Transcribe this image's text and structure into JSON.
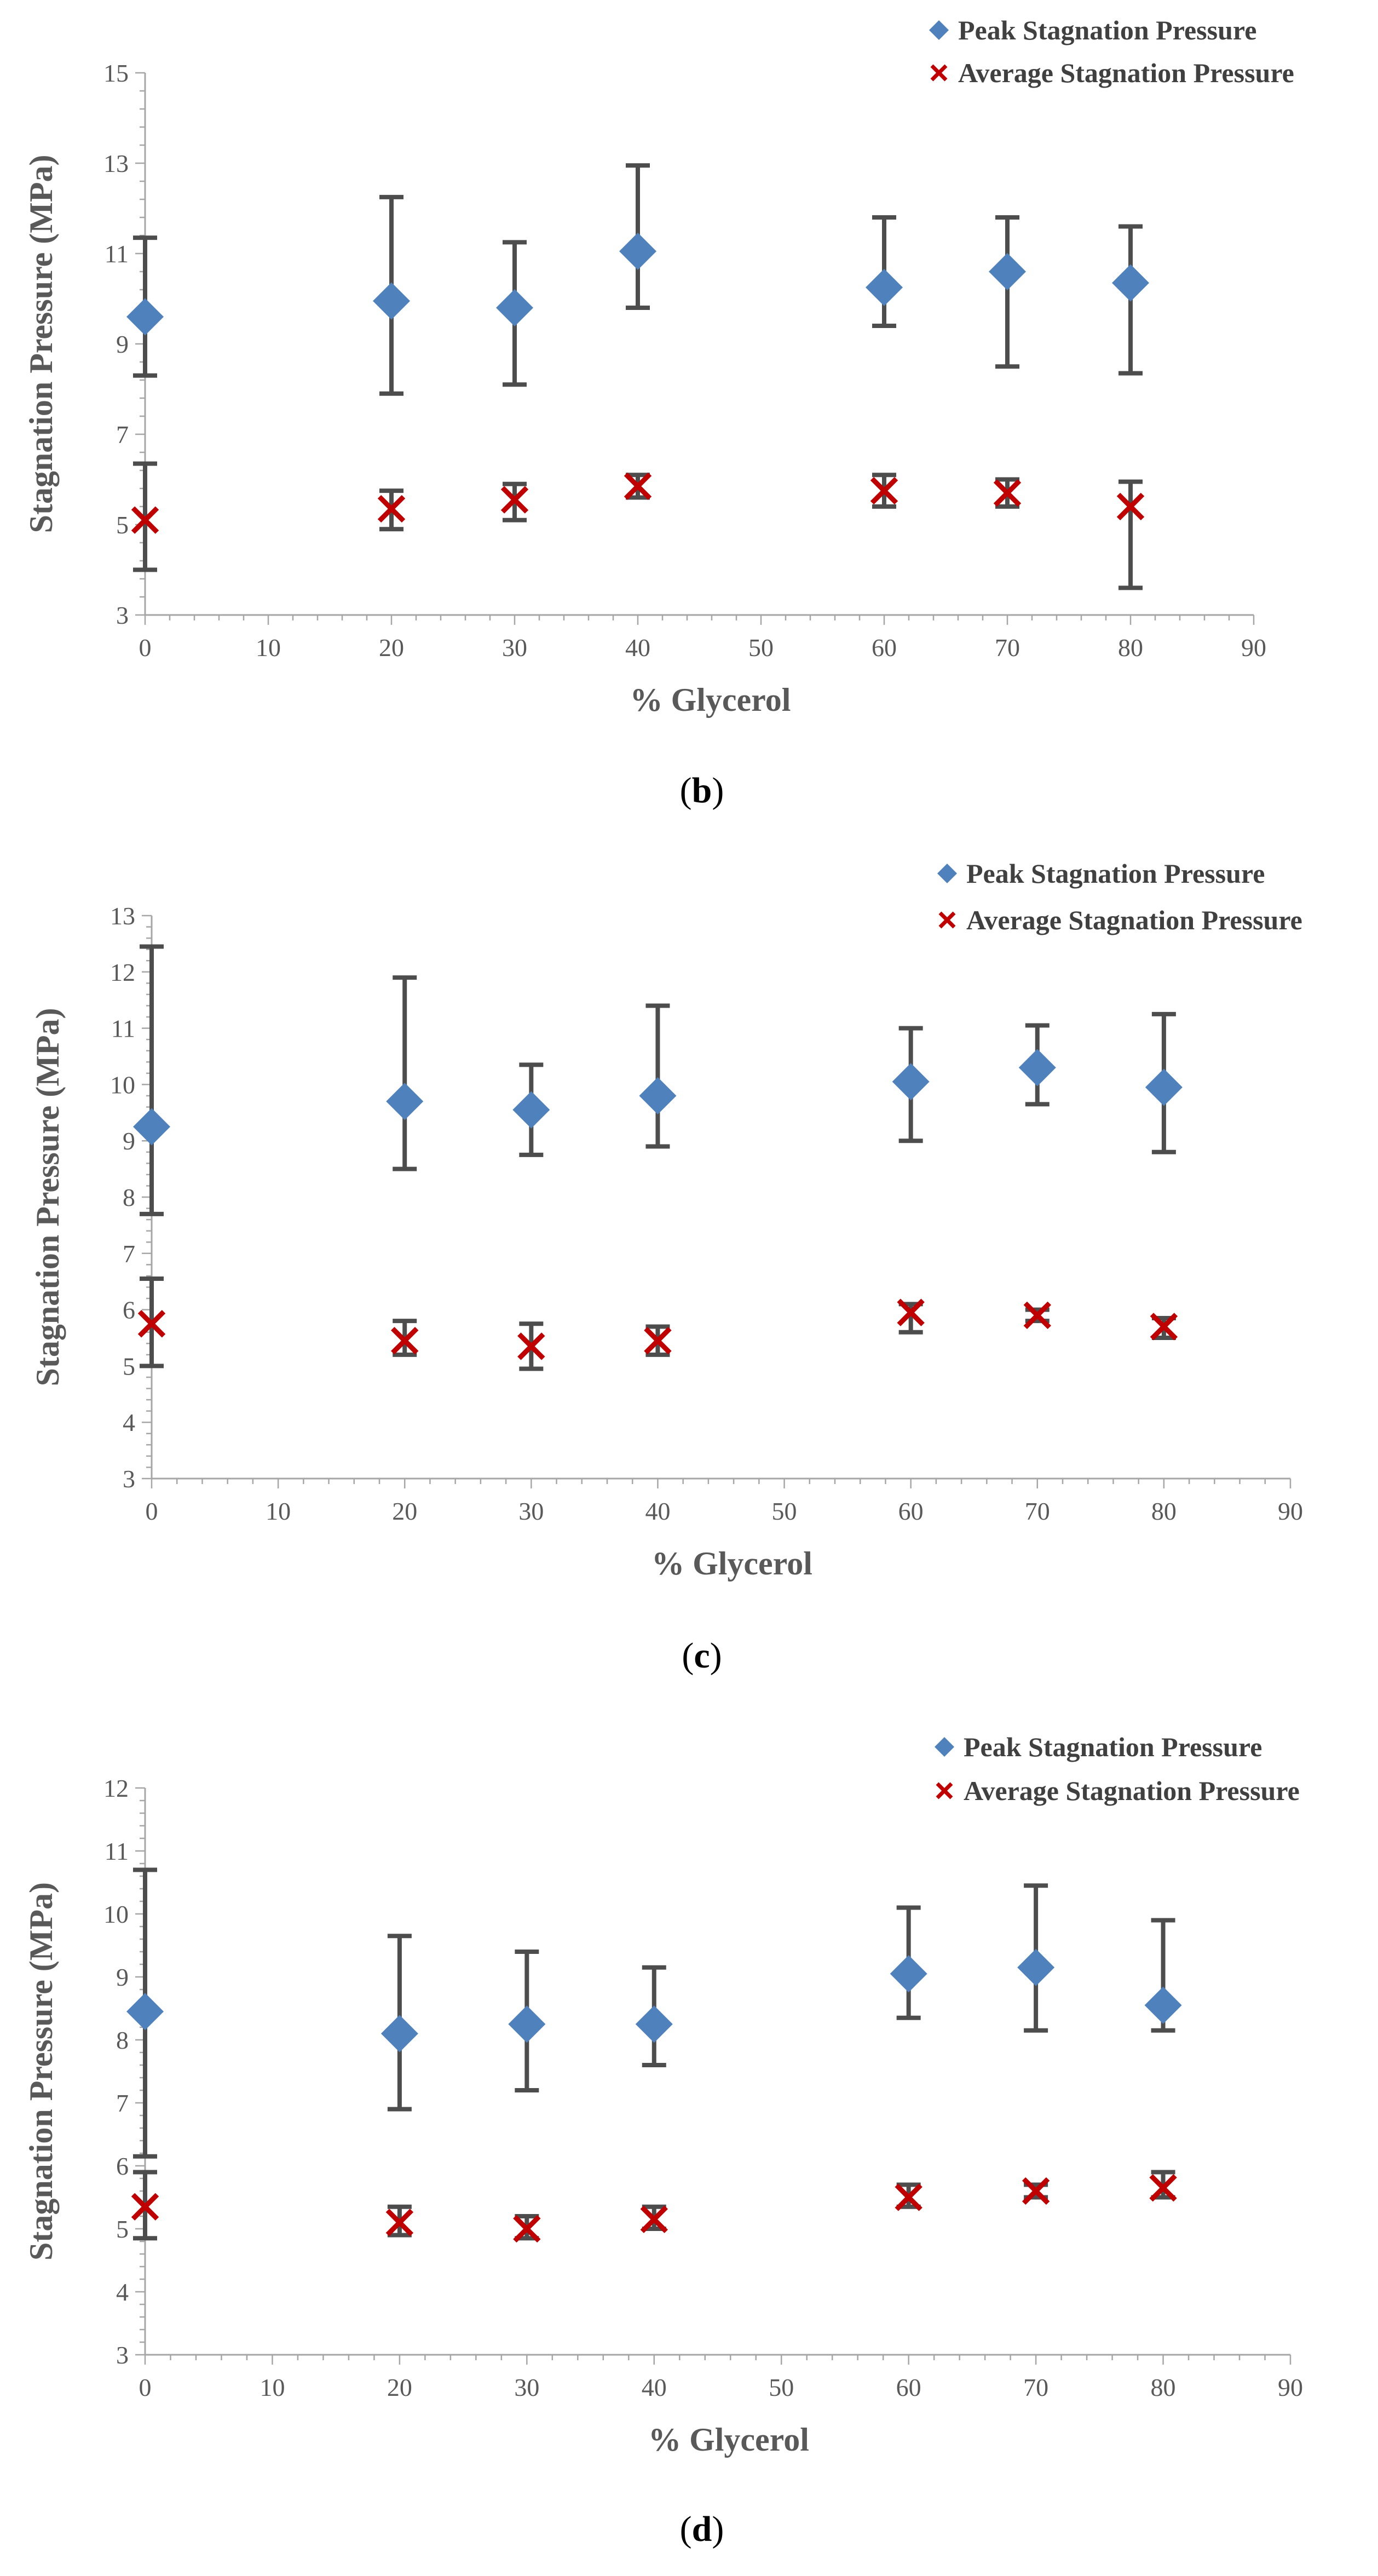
{
  "chart_data": [
    {
      "type": "scatter",
      "caption": "b",
      "xlabel": "% Glycerol",
      "ylabel": "Stagnation Pressure (MPa)",
      "xlim": [
        0,
        90
      ],
      "ylim": [
        3,
        15
      ],
      "xticks": [
        0,
        10,
        20,
        30,
        40,
        50,
        60,
        70,
        80,
        90
      ],
      "yticks": [
        3,
        5,
        7,
        9,
        11,
        13,
        15
      ],
      "legend_position": "top-right",
      "series": [
        {
          "name": "Peak Stagnation Pressure",
          "marker": "diamond",
          "color": "#4F81BD",
          "x": [
            0,
            20,
            30,
            40,
            60,
            70,
            80
          ],
          "y": [
            9.6,
            9.95,
            9.8,
            11.05,
            10.25,
            10.6,
            10.35
          ],
          "err_low": [
            8.3,
            7.9,
            8.1,
            9.8,
            9.4,
            8.5,
            8.35
          ],
          "err_high": [
            11.35,
            12.25,
            11.25,
            12.95,
            11.8,
            11.8,
            11.6
          ]
        },
        {
          "name": "Average Stagnation Pressure",
          "marker": "x",
          "color": "#C00000",
          "x": [
            0,
            20,
            30,
            40,
            60,
            70,
            80
          ],
          "y": [
            5.1,
            5.35,
            5.55,
            5.85,
            5.75,
            5.7,
            5.4
          ],
          "err_low": [
            4.0,
            4.9,
            5.1,
            5.6,
            5.4,
            5.4,
            3.6
          ],
          "err_high": [
            6.35,
            5.75,
            5.9,
            6.1,
            6.1,
            6.0,
            5.95
          ]
        }
      ]
    },
    {
      "type": "scatter",
      "caption": "c",
      "xlabel": "% Glycerol",
      "ylabel": "Stagnation Pressure (MPa)",
      "xlim": [
        0,
        90
      ],
      "ylim": [
        3,
        13
      ],
      "xticks": [
        0,
        10,
        20,
        30,
        40,
        50,
        60,
        70,
        80,
        90
      ],
      "yticks": [
        3,
        4,
        5,
        6,
        7,
        8,
        9,
        10,
        11,
        12,
        13
      ],
      "legend_position": "top-right",
      "series": [
        {
          "name": "Peak Stagnation Pressure",
          "marker": "diamond",
          "color": "#4F81BD",
          "x": [
            0,
            20,
            30,
            40,
            60,
            70,
            80
          ],
          "y": [
            9.25,
            9.7,
            9.55,
            9.8,
            10.05,
            10.3,
            9.95
          ],
          "err_low": [
            7.7,
            8.5,
            8.75,
            8.9,
            9.0,
            9.65,
            8.8
          ],
          "err_high": [
            12.45,
            11.9,
            10.35,
            11.4,
            11.0,
            11.05,
            11.25
          ]
        },
        {
          "name": "Average Stagnation Pressure",
          "marker": "x",
          "color": "#C00000",
          "x": [
            0,
            20,
            30,
            40,
            60,
            70,
            80
          ],
          "y": [
            5.75,
            5.45,
            5.35,
            5.45,
            5.95,
            5.9,
            5.7
          ],
          "err_low": [
            5.0,
            5.2,
            4.95,
            5.2,
            5.6,
            5.8,
            5.5
          ],
          "err_high": [
            6.55,
            5.8,
            5.75,
            5.7,
            6.1,
            6.0,
            5.85
          ]
        }
      ]
    },
    {
      "type": "scatter",
      "caption": "d",
      "xlabel": "% Glycerol",
      "ylabel": "Stagnation Pressure (MPa)",
      "xlim": [
        0,
        90
      ],
      "ylim": [
        3,
        12
      ],
      "xticks": [
        0,
        10,
        20,
        30,
        40,
        50,
        60,
        70,
        80,
        90
      ],
      "yticks": [
        3,
        4,
        5,
        6,
        7,
        8,
        9,
        10,
        11,
        12
      ],
      "legend_position": "top-right",
      "series": [
        {
          "name": "Peak Stagnation Pressure",
          "marker": "diamond",
          "color": "#4F81BD",
          "x": [
            0,
            20,
            30,
            40,
            60,
            70,
            80
          ],
          "y": [
            8.45,
            8.1,
            8.25,
            8.25,
            9.05,
            9.15,
            8.55
          ],
          "err_low": [
            6.15,
            6.9,
            7.2,
            7.6,
            8.35,
            8.15,
            8.15
          ],
          "err_high": [
            10.7,
            9.65,
            9.4,
            9.15,
            10.1,
            10.45,
            9.9
          ]
        },
        {
          "name": "Average Stagnation Pressure",
          "marker": "x",
          "color": "#C00000",
          "x": [
            0,
            20,
            30,
            40,
            60,
            70,
            80
          ],
          "y": [
            5.35,
            5.1,
            5.0,
            5.15,
            5.5,
            5.6,
            5.65
          ],
          "err_low": [
            4.85,
            4.9,
            4.85,
            5.0,
            5.35,
            5.5,
            5.5
          ],
          "err_high": [
            5.9,
            5.35,
            5.2,
            5.35,
            5.7,
            5.7,
            5.9
          ]
        }
      ]
    }
  ]
}
